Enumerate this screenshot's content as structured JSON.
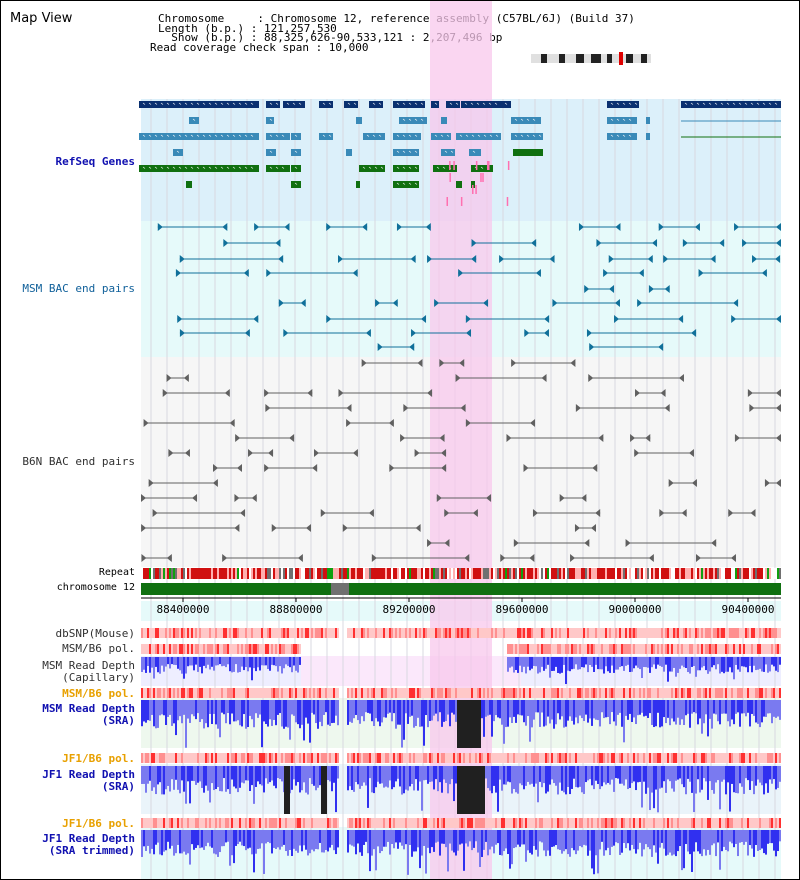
{
  "title": "Map View",
  "header": {
    "line1": "Chromosome     : Chromosome 12, reference assembly (C57BL/6J) (Build 37)",
    "line2": "Length (b.p.) : 121,257,530",
    "line3": "  Show (b.p.) : 88,325,626-90,533,121 : 2,207,496 bp",
    "line4": "Read coverage check span : 10,000"
  },
  "tracks": {
    "refseq": "RefSeq Genes",
    "msm_bac": "MSM BAC end pairs",
    "b6n_bac": "B6N BAC end pairs",
    "repeat": "Repeat",
    "chromosome": "chromosome 12",
    "dbsnp": "dbSNP(Mouse)",
    "msm_pol": "MSM/B6 pol.",
    "msm_depth_cap_1": "MSM Read Depth",
    "msm_depth_cap_2": "(Capillary)",
    "msm_pol2": "MSM/B6 pol.",
    "msm_sra_1": "MSM Read Depth",
    "msm_sra_2": "(SRA)",
    "jf1_pol": "JF1/B6 pol.",
    "jf1_sra_1": "JF1 Read Depth",
    "jf1_sra_2": "(SRA)",
    "jf1_pol2": "JF1/B6 pol.",
    "jf1_trim_1": "JF1 Read Depth",
    "jf1_trim_2": "(SRA trimmed)"
  },
  "axis_ticks": [
    "88400000",
    "88800000",
    "89200000",
    "89600000",
    "90000000",
    "90400000"
  ],
  "colors": {
    "refseq_bg": "#dcf0fa",
    "msm_bg": "#e6fafa",
    "b6n_bg": "#f2f2f2",
    "highlight": "#f8c8ec",
    "gene_dark": "#0a3070",
    "gene_mid": "#3a8ab8",
    "gene_green": "#107010",
    "bac_teal": "#10709a",
    "bac_grey": "#606060",
    "depth_blue": "#3030f0",
    "depth_light": "#7a7af0"
  }
}
